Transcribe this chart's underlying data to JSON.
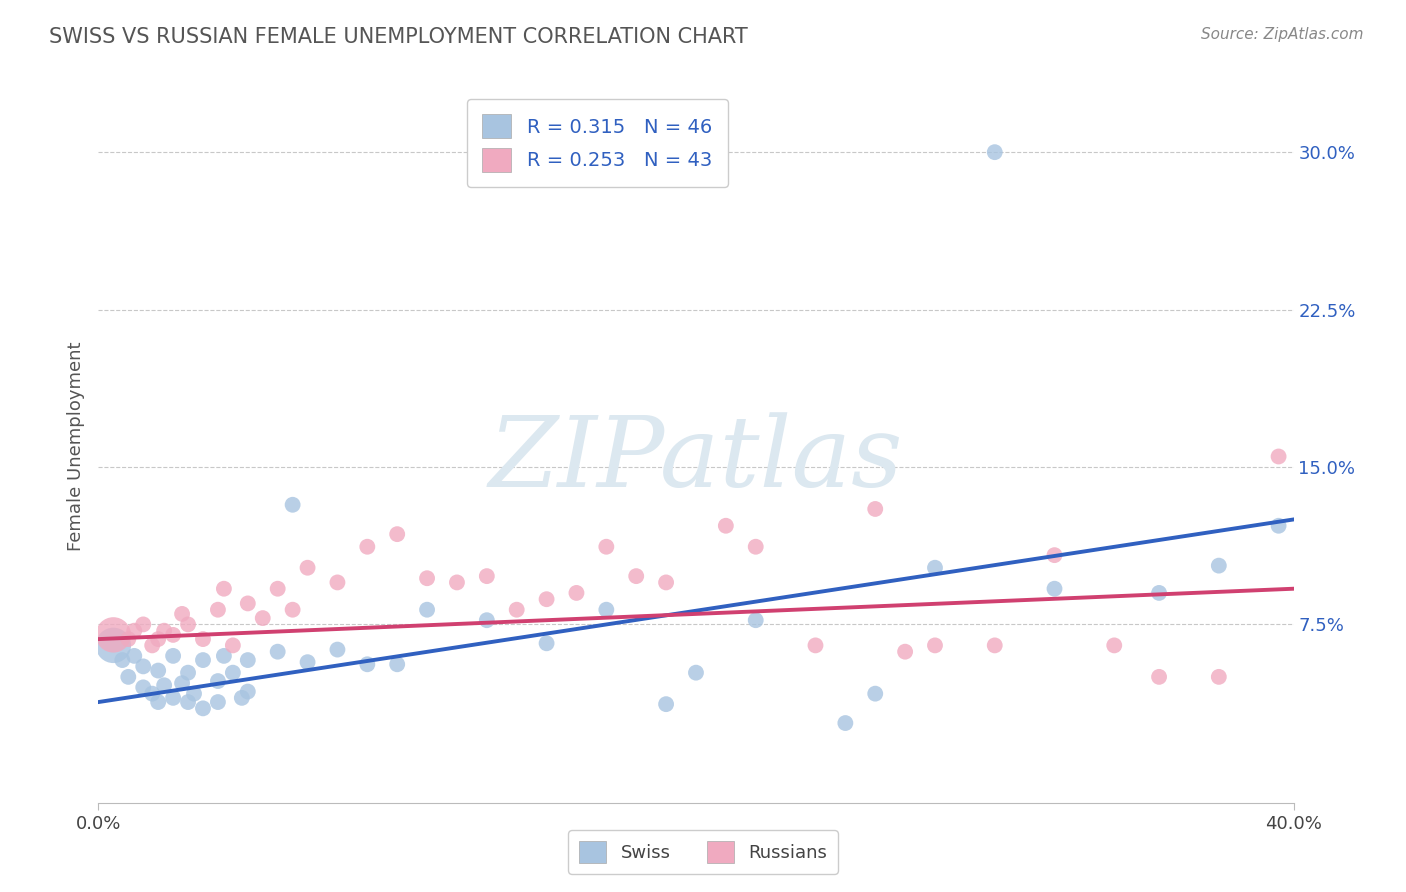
{
  "title": "SWISS VS RUSSIAN FEMALE UNEMPLOYMENT CORRELATION CHART",
  "source": "Source: ZipAtlas.com",
  "ylabel": "Female Unemployment",
  "xlim": [
    0.0,
    0.4
  ],
  "ylim": [
    -0.01,
    0.33
  ],
  "xticks": [
    0.0,
    0.4
  ],
  "xtick_labels": [
    "0.0%",
    "40.0%"
  ],
  "yticks_right": [
    0.075,
    0.15,
    0.225,
    0.3
  ],
  "ytick_labels_right": [
    "7.5%",
    "15.0%",
    "22.5%",
    "30.0%"
  ],
  "grid_color": "#c8c8c8",
  "background_color": "#ffffff",
  "swiss_color": "#a8c4e0",
  "russian_color": "#f0aac0",
  "swiss_line_color": "#3060c0",
  "russian_line_color": "#d04070",
  "watermark_color": "#dce8f0",
  "watermark": "ZIPatlas",
  "swiss_line_start_y": 0.038,
  "swiss_line_end_y": 0.125,
  "russian_line_start_y": 0.068,
  "russian_line_end_y": 0.092,
  "swiss_x": [
    0.005,
    0.008,
    0.01,
    0.012,
    0.015,
    0.015,
    0.018,
    0.02,
    0.02,
    0.022,
    0.025,
    0.025,
    0.028,
    0.03,
    0.03,
    0.032,
    0.035,
    0.035,
    0.04,
    0.04,
    0.042,
    0.045,
    0.048,
    0.05,
    0.05,
    0.06,
    0.065,
    0.07,
    0.08,
    0.09,
    0.1,
    0.11,
    0.13,
    0.15,
    0.17,
    0.19,
    0.2,
    0.22,
    0.25,
    0.26,
    0.28,
    0.3,
    0.32,
    0.355,
    0.375,
    0.395
  ],
  "swiss_y": [
    0.065,
    0.058,
    0.05,
    0.06,
    0.045,
    0.055,
    0.042,
    0.038,
    0.053,
    0.046,
    0.04,
    0.06,
    0.047,
    0.038,
    0.052,
    0.042,
    0.058,
    0.035,
    0.048,
    0.038,
    0.06,
    0.052,
    0.04,
    0.043,
    0.058,
    0.062,
    0.132,
    0.057,
    0.063,
    0.056,
    0.056,
    0.082,
    0.077,
    0.066,
    0.082,
    0.037,
    0.052,
    0.077,
    0.028,
    0.042,
    0.102,
    0.3,
    0.092,
    0.09,
    0.103,
    0.122
  ],
  "russian_x": [
    0.005,
    0.01,
    0.012,
    0.015,
    0.018,
    0.02,
    0.022,
    0.025,
    0.028,
    0.03,
    0.035,
    0.04,
    0.042,
    0.045,
    0.05,
    0.055,
    0.06,
    0.065,
    0.07,
    0.08,
    0.09,
    0.1,
    0.11,
    0.12,
    0.13,
    0.14,
    0.15,
    0.16,
    0.17,
    0.18,
    0.19,
    0.21,
    0.22,
    0.24,
    0.26,
    0.27,
    0.28,
    0.3,
    0.32,
    0.34,
    0.355,
    0.375,
    0.395
  ],
  "russian_y": [
    0.07,
    0.068,
    0.072,
    0.075,
    0.065,
    0.068,
    0.072,
    0.07,
    0.08,
    0.075,
    0.068,
    0.082,
    0.092,
    0.065,
    0.085,
    0.078,
    0.092,
    0.082,
    0.102,
    0.095,
    0.112,
    0.118,
    0.097,
    0.095,
    0.098,
    0.082,
    0.087,
    0.09,
    0.112,
    0.098,
    0.095,
    0.122,
    0.112,
    0.065,
    0.13,
    0.062,
    0.065,
    0.065,
    0.108,
    0.065,
    0.05,
    0.05,
    0.155
  ],
  "swiss_large_dot_idx": 0,
  "russian_large_dot_idx": 0,
  "dot_size": 130,
  "large_dot_size": 650
}
